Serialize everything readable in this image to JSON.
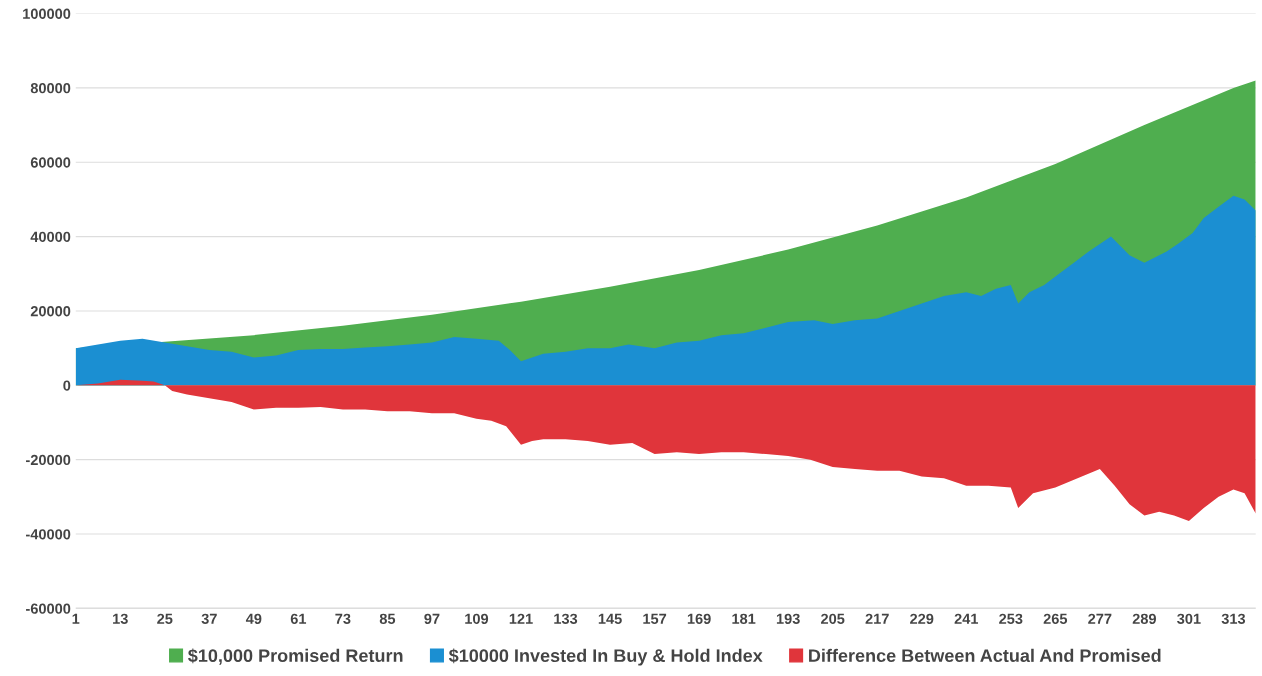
{
  "chart_data": {
    "type": "area",
    "xlim": [
      1,
      319
    ],
    "ylim": [
      -60000,
      100000
    ],
    "xticks": [
      1,
      13,
      25,
      37,
      49,
      61,
      73,
      85,
      97,
      109,
      121,
      133,
      145,
      157,
      169,
      181,
      193,
      205,
      217,
      229,
      241,
      253,
      265,
      277,
      289,
      301,
      313
    ],
    "yticks": [
      -60000,
      -40000,
      -20000,
      0,
      20000,
      40000,
      60000,
      80000,
      100000
    ],
    "grid": "y",
    "legend": "bottom",
    "series": [
      {
        "name": "$10,000 Promised Return",
        "color": "#4fae4f",
        "x": [
          1,
          25,
          49,
          73,
          97,
          121,
          145,
          169,
          193,
          217,
          241,
          265,
          289,
          313,
          319
        ],
        "values": [
          10000,
          11700,
          13500,
          16000,
          19000,
          22500,
          26500,
          31000,
          36500,
          43000,
          50500,
          59500,
          70000,
          80000,
          82000
        ]
      },
      {
        "name": "$10000 Invested In Buy & Hold Index",
        "color": "#1b8fd2",
        "x": [
          1,
          7,
          13,
          19,
          25,
          31,
          37,
          43,
          49,
          55,
          61,
          67,
          73,
          79,
          85,
          91,
          97,
          103,
          109,
          115,
          118,
          121,
          127,
          133,
          139,
          145,
          150,
          157,
          163,
          169,
          175,
          181,
          187,
          193,
          200,
          205,
          211,
          217,
          223,
          229,
          235,
          241,
          245,
          249,
          253,
          255,
          258,
          262,
          266,
          270,
          274,
          277,
          280,
          283,
          285,
          289,
          293,
          295,
          298,
          302,
          305,
          309,
          313,
          316,
          319
        ],
        "values": [
          10000,
          11000,
          12000,
          12500,
          11500,
          10500,
          9500,
          9000,
          7500,
          8000,
          9500,
          9800,
          9800,
          10200,
          10500,
          11000,
          11500,
          13000,
          12500,
          12000,
          9500,
          6500,
          8500,
          9000,
          10000,
          10000,
          11000,
          10000,
          11500,
          12000,
          13500,
          14000,
          15500,
          17000,
          17500,
          16500,
          17500,
          18000,
          20000,
          22000,
          24000,
          25000,
          24000,
          26000,
          27000,
          22000,
          25000,
          27000,
          30000,
          33000,
          36000,
          38000,
          40000,
          37000,
          35000,
          33000,
          35000,
          36000,
          38000,
          41000,
          45000,
          48000,
          51000,
          50000,
          47000
        ]
      },
      {
        "name": "Difference Between Actual And Promised",
        "color": "#e0353b",
        "x": [
          1,
          7,
          13,
          19,
          22,
          25,
          27,
          31,
          37,
          43,
          49,
          55,
          61,
          67,
          73,
          79,
          85,
          91,
          97,
          103,
          109,
          113,
          117,
          121,
          124,
          127,
          133,
          139,
          145,
          151,
          157,
          163,
          169,
          175,
          181,
          187,
          193,
          199,
          205,
          211,
          217,
          223,
          229,
          235,
          241,
          247,
          253,
          255,
          259,
          265,
          271,
          277,
          281,
          285,
          289,
          293,
          297,
          301,
          305,
          309,
          313,
          316,
          319
        ],
        "values": [
          0,
          500,
          1500,
          1200,
          1000,
          0,
          -1500,
          -2500,
          -3500,
          -4500,
          -6500,
          -6000,
          -6000,
          -5800,
          -6500,
          -6500,
          -7000,
          -7000,
          -7500,
          -7500,
          -9000,
          -9500,
          -11000,
          -16000,
          -15000,
          -14500,
          -14500,
          -15000,
          -16000,
          -15500,
          -18500,
          -18000,
          -18500,
          -18000,
          -18000,
          -18500,
          -19000,
          -20000,
          -22000,
          -22500,
          -23000,
          -23000,
          -24500,
          -25000,
          -27000,
          -27000,
          -27500,
          -33000,
          -29000,
          -27500,
          -25000,
          -22500,
          -27000,
          -32000,
          -35000,
          -34000,
          -35000,
          -36500,
          -33000,
          -30000,
          -28000,
          -29000,
          -34500
        ]
      }
    ]
  }
}
